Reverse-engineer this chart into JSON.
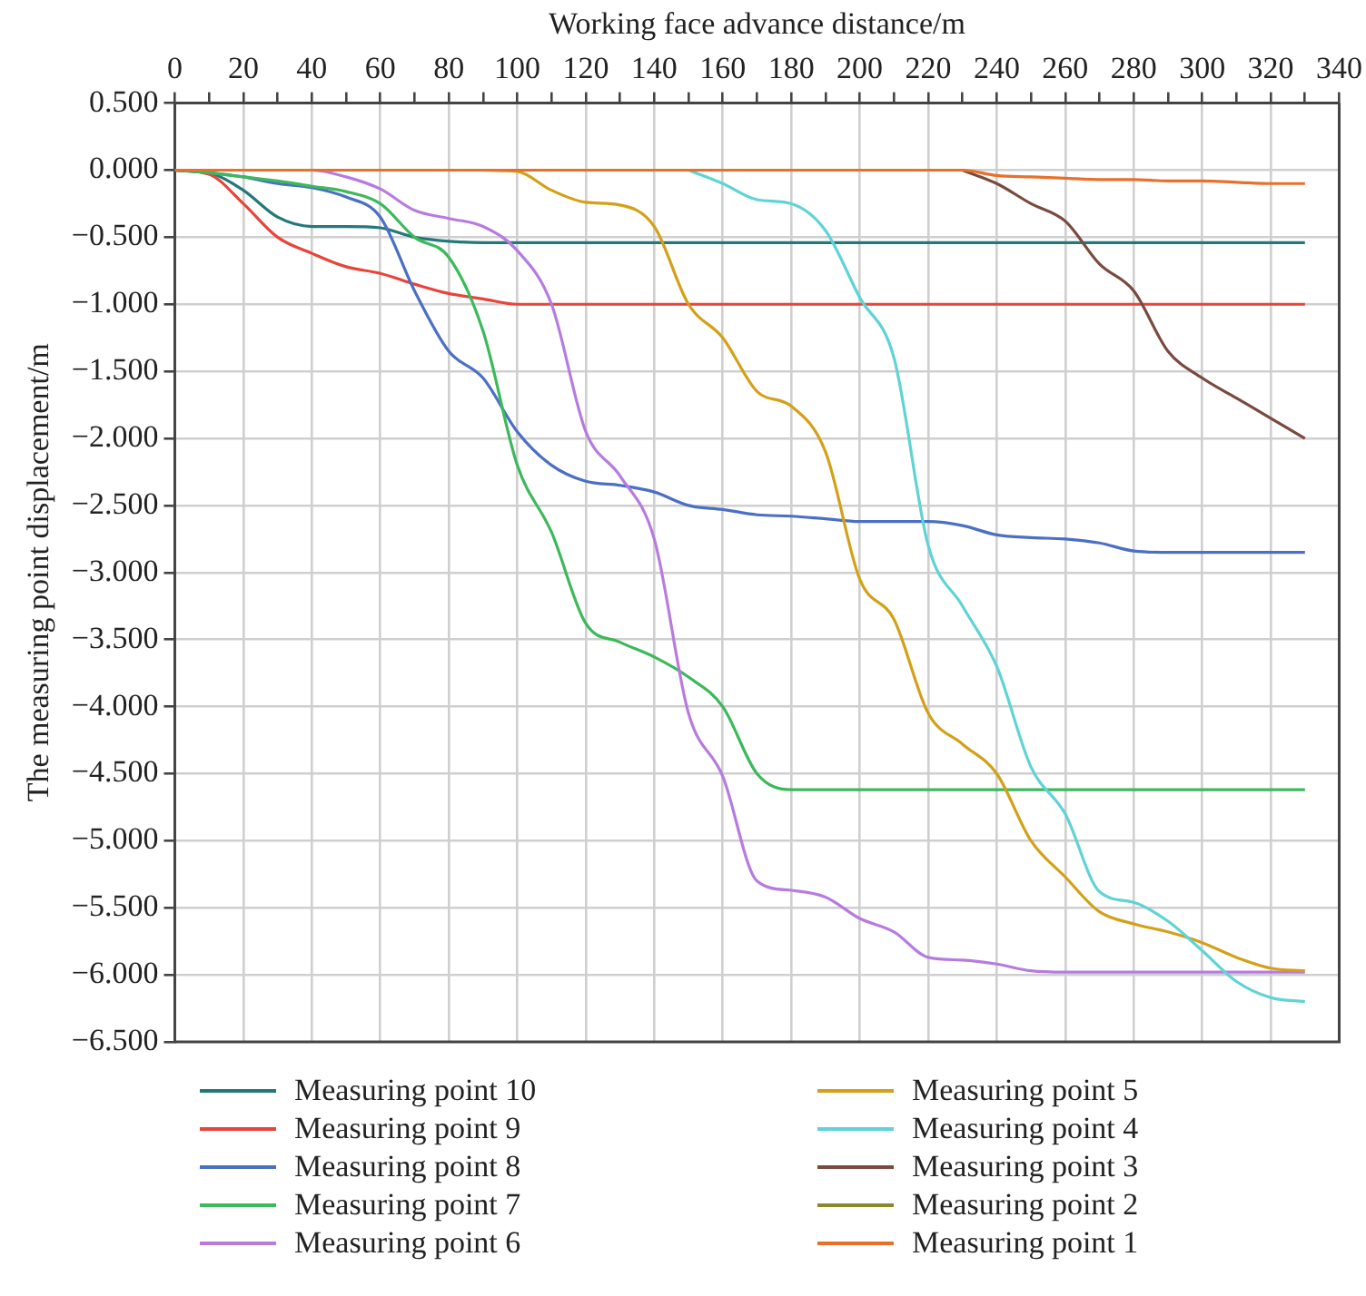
{
  "chart_data": {
    "type": "line",
    "xlabel": "Working face advance distance/m",
    "ylabel": "The measuring point displacement/m",
    "x": [
      0,
      10,
      20,
      30,
      40,
      50,
      60,
      70,
      80,
      90,
      100,
      110,
      120,
      130,
      140,
      150,
      160,
      170,
      180,
      190,
      200,
      210,
      220,
      230,
      240,
      250,
      260,
      270,
      280,
      290,
      300,
      310,
      320,
      330
    ],
    "xlim": [
      0,
      340
    ],
    "xticks": [
      0,
      {
        "value": 10,
        "label": null
      },
      20,
      {
        "value": 30,
        "label": null
      },
      40,
      {
        "value": 50,
        "label": null
      },
      60,
      {
        "value": 70,
        "label": null
      },
      80,
      {
        "value": 90,
        "label": null
      },
      100,
      {
        "value": 110,
        "label": null
      },
      120,
      {
        "value": 130,
        "label": null
      },
      140,
      {
        "value": 150,
        "label": null
      },
      160,
      {
        "value": 170,
        "label": null
      },
      180,
      {
        "value": 190,
        "label": null
      },
      200,
      {
        "value": 210,
        "label": null
      },
      220,
      {
        "value": 230,
        "label": null
      },
      240,
      {
        "value": 250,
        "label": null
      },
      260,
      {
        "value": 270,
        "label": null
      },
      280,
      {
        "value": 290,
        "label": null
      },
      300,
      {
        "value": 310,
        "label": null
      },
      320,
      {
        "value": 330,
        "label": null
      },
      340
    ],
    "ylim": [
      -6.5,
      0.5
    ],
    "yticks": [
      {
        "value": 0.5,
        "label": "0.500"
      },
      {
        "value": 0,
        "label": "0.000"
      },
      {
        "value": -0.5,
        "label": "−0.500"
      },
      {
        "value": -1,
        "label": "−1.000"
      },
      {
        "value": -1.5,
        "label": "−1.500"
      },
      {
        "value": -2,
        "label": "−2.000"
      },
      {
        "value": -2.5,
        "label": "−2.500"
      },
      {
        "value": -3,
        "label": "−3.000"
      },
      {
        "value": -3.5,
        "label": "−3.500"
      },
      {
        "value": -4,
        "label": "−4.000"
      },
      {
        "value": -4.5,
        "label": "−4.500"
      },
      {
        "value": -5,
        "label": "−5.000"
      },
      {
        "value": -5.5,
        "label": "−5.500"
      },
      {
        "value": -6,
        "label": "−6.000"
      },
      {
        "value": -6.5,
        "label": "−6.500"
      }
    ],
    "grid": true,
    "legend": "bottom",
    "marker": "none",
    "line_style": "solid",
    "series": [
      {
        "name": "Measuring point 10",
        "color": "#23787a",
        "values": [
          0,
          -0.02,
          -0.15,
          -0.35,
          -0.42,
          -0.42,
          -0.43,
          -0.5,
          -0.53,
          -0.54,
          -0.54,
          -0.54,
          -0.54,
          -0.54,
          -0.54,
          -0.54,
          -0.54,
          -0.54,
          -0.54,
          -0.54,
          -0.54,
          -0.54,
          -0.54,
          -0.54,
          -0.54,
          -0.54,
          -0.54,
          -0.54,
          -0.54,
          -0.54,
          -0.54,
          -0.54,
          -0.54,
          -0.54
        ]
      },
      {
        "name": "Measuring point 9",
        "color": "#e8443a",
        "values": [
          0,
          -0.03,
          -0.25,
          -0.5,
          -0.62,
          -0.72,
          -0.77,
          -0.85,
          -0.92,
          -0.96,
          -1,
          -1,
          -1,
          -1,
          -1,
          -1,
          -1,
          -1,
          -1,
          -1,
          -1,
          -1,
          -1,
          -1,
          -1,
          -1,
          -1,
          -1,
          -1,
          -1,
          -1,
          -1,
          -1,
          -1
        ]
      },
      {
        "name": "Measuring point 8",
        "color": "#4a6fc4",
        "values": [
          0,
          -0.02,
          -0.05,
          -0.1,
          -0.13,
          -0.2,
          -0.35,
          -0.9,
          -1.35,
          -1.55,
          -1.95,
          -2.2,
          -2.32,
          -2.35,
          -2.4,
          -2.5,
          -2.53,
          -2.57,
          -2.58,
          -2.6,
          -2.62,
          -2.62,
          -2.62,
          -2.65,
          -2.72,
          -2.74,
          -2.75,
          -2.78,
          -2.84,
          -2.85,
          -2.85,
          -2.85,
          -2.85,
          -2.85
        ]
      },
      {
        "name": "Measuring point 7",
        "color": "#3cb95a",
        "values": [
          0,
          -0.02,
          -0.05,
          -0.08,
          -0.12,
          -0.16,
          -0.25,
          -0.5,
          -0.65,
          -1.2,
          -2.2,
          -2.7,
          -3.38,
          -3.52,
          -3.63,
          -3.78,
          -4,
          -4.5,
          -4.62,
          -4.62,
          -4.62,
          -4.62,
          -4.62,
          -4.62,
          -4.62,
          -4.62,
          -4.62,
          -4.62,
          -4.62,
          -4.62,
          -4.62,
          -4.62,
          -4.62,
          -4.62
        ]
      },
      {
        "name": "Measuring point 6",
        "color": "#b77be0",
        "values": [
          null,
          null,
          null,
          0,
          0,
          -0.05,
          -0.14,
          -0.3,
          -0.36,
          -0.42,
          -0.6,
          -1,
          -1.95,
          -2.28,
          -2.75,
          -4.05,
          -4.52,
          -5.3,
          -5.37,
          -5.42,
          -5.58,
          -5.68,
          -5.87,
          -5.89,
          -5.92,
          -5.97,
          -5.98,
          -5.98,
          -5.98,
          -5.98,
          -5.98,
          -5.98,
          -5.98,
          -5.98
        ]
      },
      {
        "name": "Measuring point 5",
        "color": "#d4a017",
        "values": [
          null,
          null,
          null,
          null,
          null,
          null,
          null,
          null,
          null,
          0,
          -0.01,
          -0.15,
          -0.24,
          -0.26,
          -0.42,
          -1,
          -1.25,
          -1.65,
          -1.76,
          -2.1,
          -3.05,
          -3.35,
          -4.05,
          -4.28,
          -4.5,
          -5,
          -5.27,
          -5.53,
          -5.62,
          -5.68,
          -5.76,
          -5.87,
          -5.95,
          -5.97
        ]
      },
      {
        "name": "Measuring point 4",
        "color": "#5fd3d6",
        "values": [
          null,
          null,
          null,
          null,
          null,
          null,
          null,
          null,
          null,
          null,
          null,
          null,
          null,
          null,
          null,
          0,
          -0.1,
          -0.22,
          -0.25,
          -0.45,
          -0.95,
          -1.4,
          -2.8,
          -3.25,
          -3.7,
          -4.45,
          -4.8,
          -5.38,
          -5.46,
          -5.6,
          -5.82,
          -6.05,
          -6.17,
          -6.2
        ]
      },
      {
        "name": "Measuring point 3",
        "color": "#7a4a3f",
        "values": [
          null,
          null,
          null,
          null,
          null,
          null,
          null,
          null,
          null,
          null,
          null,
          null,
          null,
          null,
          null,
          null,
          null,
          null,
          null,
          null,
          null,
          null,
          null,
          0,
          -0.1,
          -0.25,
          -0.38,
          -0.7,
          -0.9,
          -1.35,
          -1.55,
          -1.7,
          -1.85,
          -2
        ]
      },
      {
        "name": "Measuring point 2",
        "color": "#8a8a2a",
        "values": [
          null,
          null,
          null,
          null,
          null,
          null,
          null,
          null,
          null,
          null,
          null,
          null,
          null,
          null,
          null,
          null,
          null,
          null,
          null,
          null,
          null,
          null,
          null,
          null,
          null,
          null,
          null,
          null,
          null,
          null,
          null,
          null,
          null,
          null
        ]
      },
      {
        "name": "Measuring point 1",
        "color": "#e8702a",
        "values": [
          0,
          0,
          0,
          0,
          0,
          0,
          0,
          0,
          0,
          0,
          0,
          0,
          0,
          0,
          0,
          0,
          0,
          0,
          0,
          0,
          0,
          0,
          0,
          0,
          -0.04,
          -0.05,
          -0.06,
          -0.07,
          -0.07,
          -0.08,
          -0.08,
          -0.09,
          -0.1,
          -0.1
        ]
      }
    ]
  }
}
